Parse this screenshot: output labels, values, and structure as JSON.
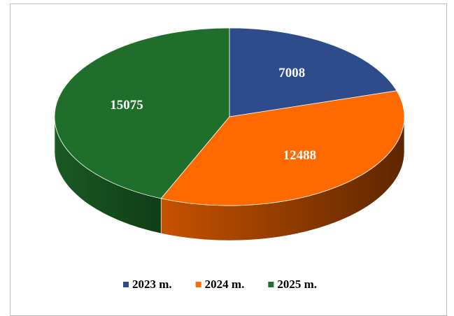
{
  "chart_data": {
    "type": "pie",
    "categories": [
      "2023 m.",
      "2024 m.",
      "2025 m."
    ],
    "values": [
      7008,
      12488,
      15075
    ],
    "colors": [
      "#2e4b8b",
      "#ff6a00",
      "#1f6e2b"
    ],
    "legend": "bottom"
  }
}
